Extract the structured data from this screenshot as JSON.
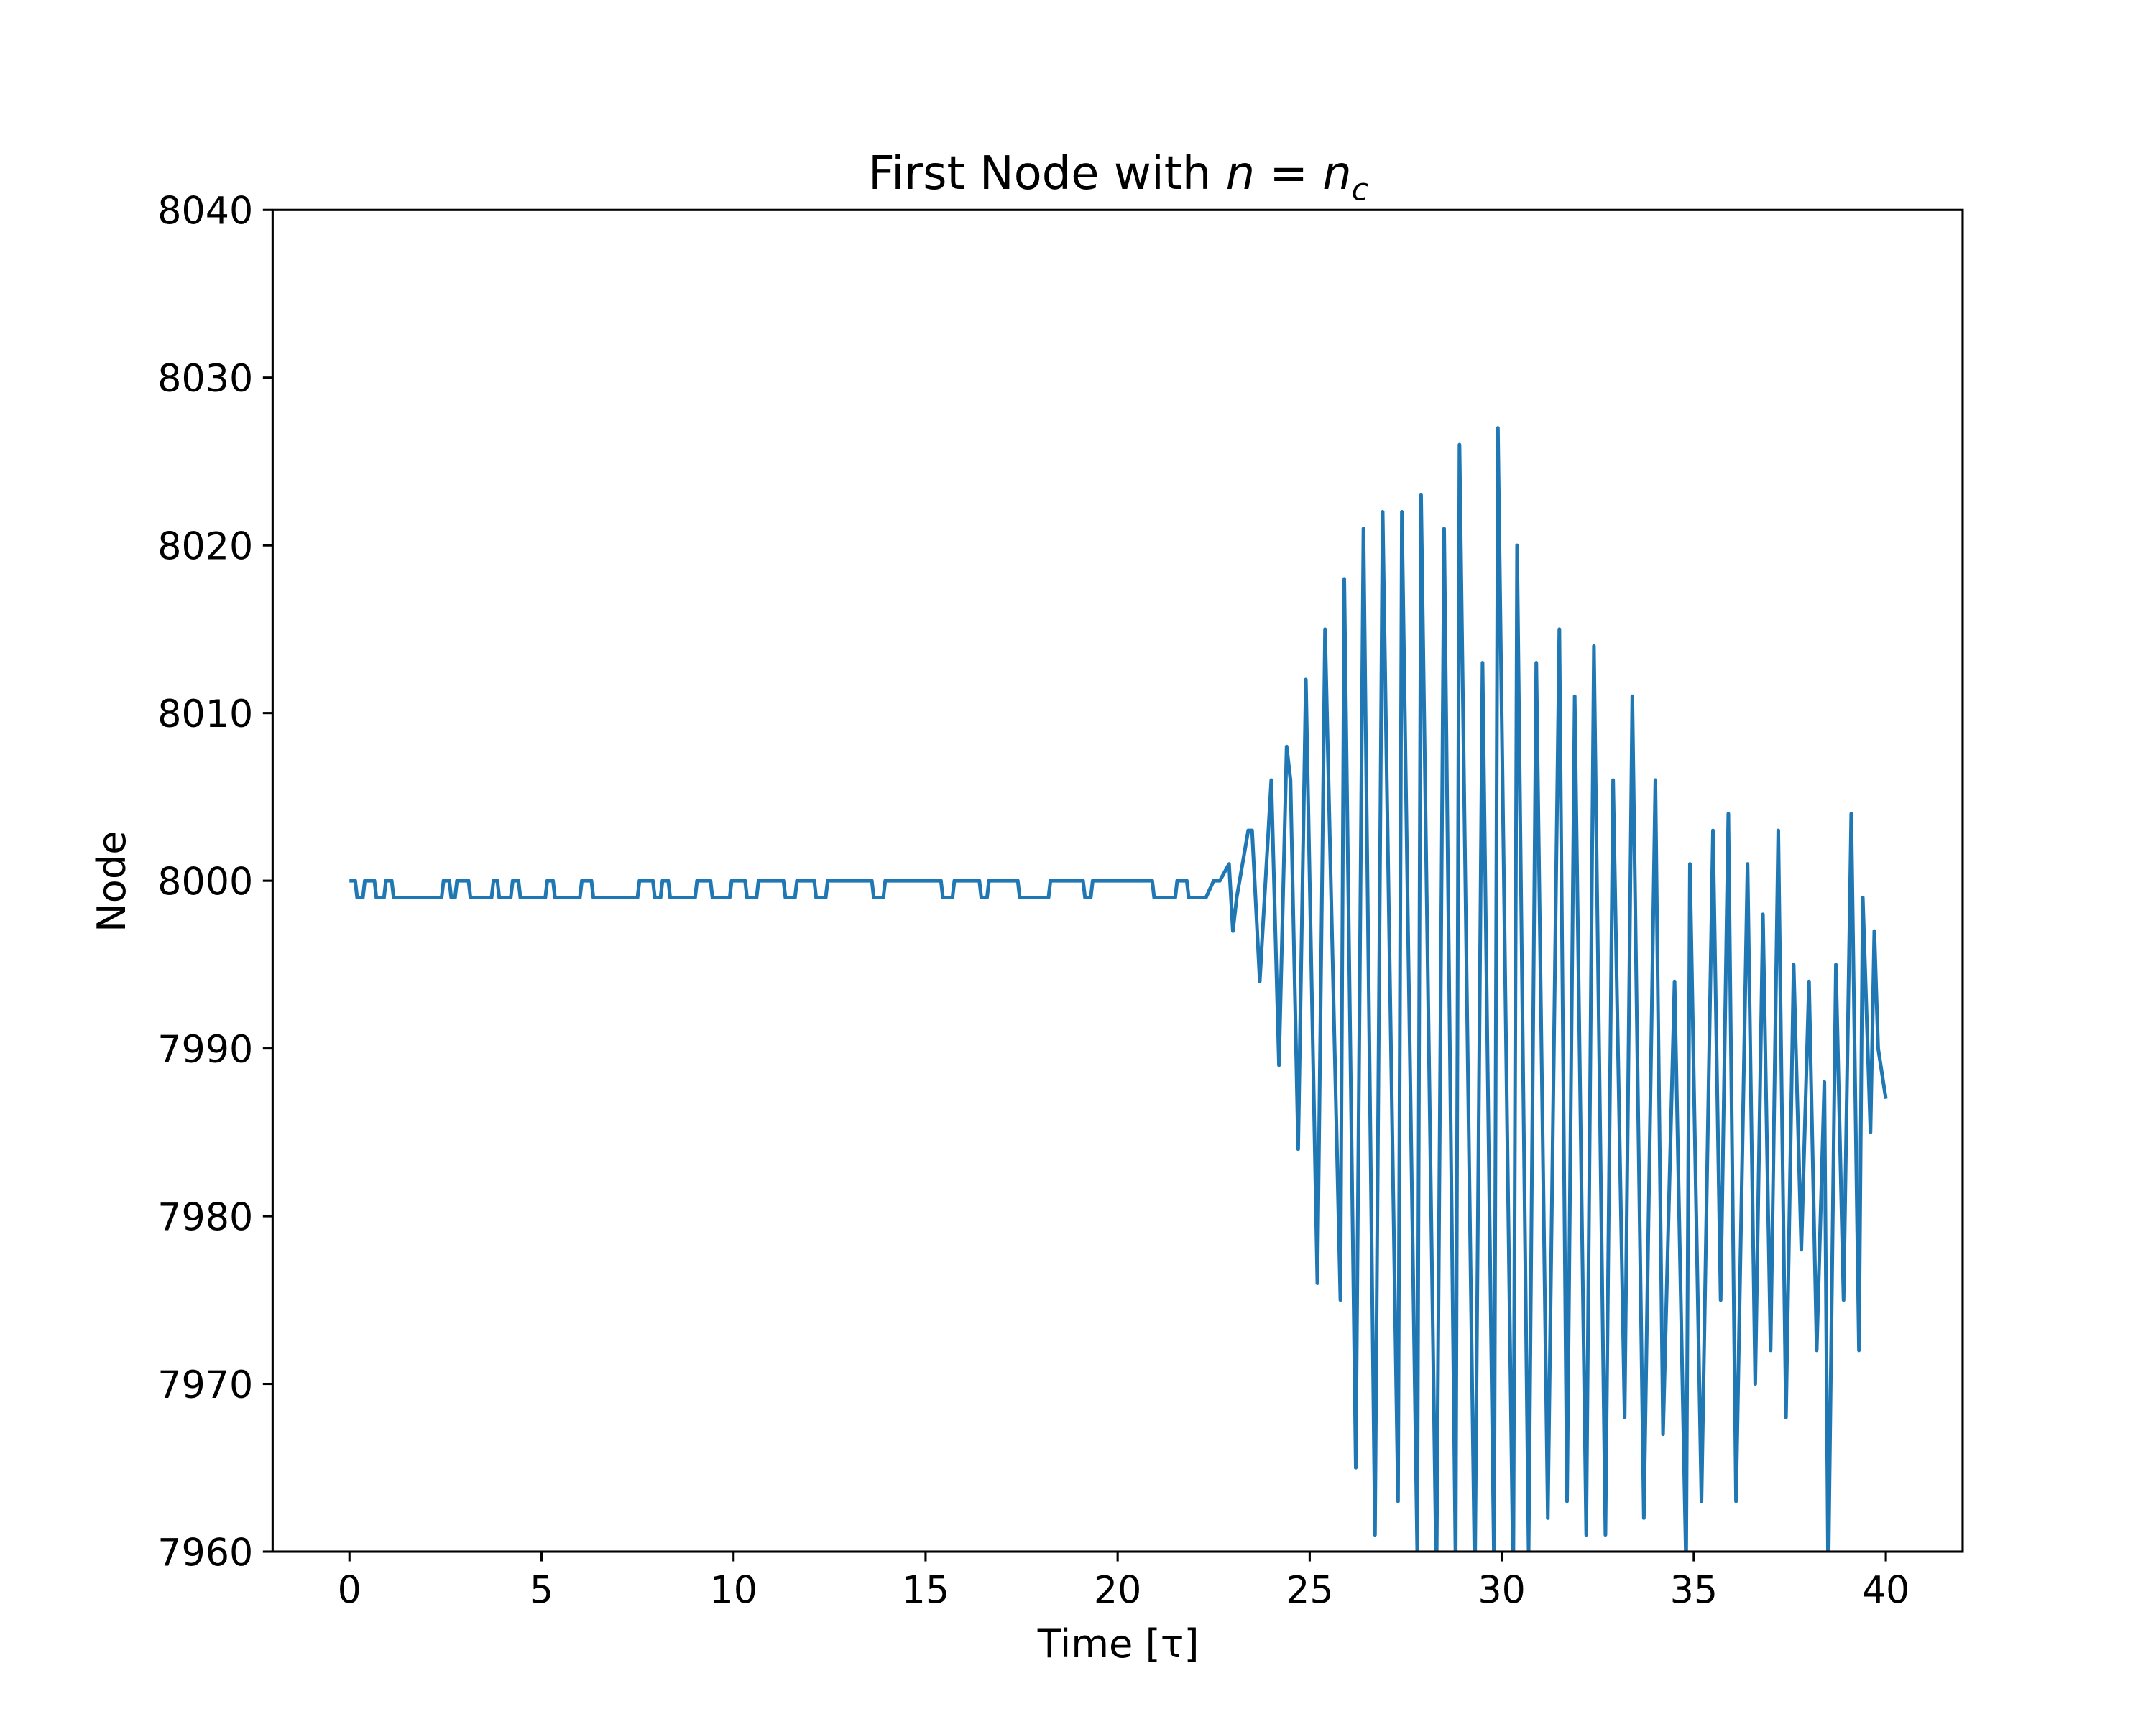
{
  "chart_data": {
    "type": "line",
    "title": [
      "First Node with ",
      "n",
      " = ",
      "n",
      "c"
    ],
    "xlabel": "Time [τ]",
    "ylabel": "Node",
    "xlim": [
      -2,
      42
    ],
    "ylim": [
      7960,
      8040
    ],
    "xticks": [
      0,
      5,
      10,
      15,
      20,
      25,
      30,
      35,
      40
    ],
    "yticks": [
      7960,
      7970,
      7980,
      7990,
      8000,
      8010,
      8020,
      8030,
      8040
    ],
    "series": [
      {
        "color": "#1f77b4",
        "x": [
          0,
          0.15,
          0.2,
          0.35,
          0.4,
          0.65,
          0.7,
          0.9,
          0.95,
          1.1,
          1.15,
          2.4,
          2.45,
          2.6,
          2.65,
          2.75,
          2.8,
          3.1,
          3.15,
          3.7,
          3.75,
          3.85,
          3.9,
          4.2,
          4.25,
          4.4,
          4.45,
          5.1,
          5.15,
          5.3,
          5.35,
          6.0,
          6.05,
          6.3,
          6.35,
          7.5,
          7.55,
          7.9,
          7.95,
          8.1,
          8.15,
          8.3,
          8.35,
          9.0,
          9.05,
          9.4,
          9.45,
          9.9,
          9.95,
          10.3,
          10.35,
          10.6,
          10.65,
          11.3,
          11.35,
          11.6,
          11.65,
          12.1,
          12.15,
          12.4,
          12.45,
          13.6,
          13.65,
          13.9,
          13.95,
          15.4,
          15.45,
          15.7,
          15.75,
          16.4,
          16.45,
          16.6,
          16.65,
          17.4,
          17.45,
          18.2,
          18.25,
          19.1,
          19.15,
          19.3,
          19.35,
          20.9,
          20.95,
          21.5,
          21.55,
          21.8,
          21.85,
          22.3,
          22.5,
          22.66,
          22.9,
          23.0,
          23.1,
          23.4,
          23.5,
          23.7,
          24.0,
          24.2,
          24.4,
          24.5,
          24.7,
          24.9,
          25.2,
          25.4,
          25.8,
          25.9,
          26.2,
          26.4,
          26.7,
          26.9,
          27.3,
          27.4,
          27.8,
          27.9,
          28.3,
          28.5,
          28.8,
          28.9,
          29.3,
          29.5,
          29.8,
          29.9,
          30.3,
          30.4,
          30.7,
          30.9,
          31.2,
          31.5,
          31.7,
          31.9,
          32.2,
          32.4,
          32.7,
          32.9,
          33.2,
          33.4,
          33.7,
          34.0,
          34.2,
          34.5,
          34.8,
          34.9,
          35.2,
          35.5,
          35.7,
          35.9,
          36.1,
          36.4,
          36.6,
          36.8,
          37.0,
          37.2,
          37.4,
          37.6,
          37.8,
          38.0,
          38.2,
          38.4,
          38.5,
          38.7,
          38.9,
          39.1,
          39.3,
          39.4,
          39.6,
          39.7,
          39.8,
          40.0
        ],
        "values": [
          8000,
          8000,
          7999,
          7999,
          8000,
          8000,
          7999,
          7999,
          8000,
          8000,
          7999,
          7999,
          8000,
          8000,
          7999,
          7999,
          8000,
          8000,
          7999,
          7999,
          8000,
          8000,
          7999,
          7999,
          8000,
          8000,
          7999,
          7999,
          8000,
          8000,
          7999,
          7999,
          8000,
          8000,
          7999,
          7999,
          8000,
          8000,
          7999,
          7999,
          8000,
          8000,
          7999,
          7999,
          8000,
          8000,
          7999,
          7999,
          8000,
          8000,
          7999,
          7999,
          8000,
          8000,
          7999,
          7999,
          8000,
          8000,
          7999,
          7999,
          8000,
          8000,
          7999,
          7999,
          8000,
          8000,
          7999,
          7999,
          8000,
          8000,
          7999,
          7999,
          8000,
          8000,
          7999,
          7999,
          8000,
          8000,
          7999,
          7999,
          8000,
          8000,
          7999,
          7999,
          8000,
          8000,
          7999,
          7999,
          8000,
          8000,
          8001,
          7997,
          7999,
          8003,
          8003,
          7994,
          8006,
          7989,
          8008,
          8006,
          7984,
          8012,
          7976,
          8015,
          7975,
          8018,
          7965,
          8021,
          7961,
          8022,
          7963,
          8022,
          7960,
          8023,
          7958,
          8021,
          7959,
          8026,
          7958,
          8013,
          7959,
          8027,
          7958,
          8020,
          7960,
          8013,
          7962,
          8015,
          7963,
          8011,
          7961,
          8014,
          7961,
          8006,
          7968,
          8011,
          7962,
          8006,
          7967,
          7994,
          7959,
          8001,
          7963,
          8003,
          7975,
          8004,
          7963,
          8001,
          7970,
          7998,
          7972,
          8003,
          7968,
          7995,
          7978,
          7994,
          7972,
          7988,
          7958,
          7995,
          7975,
          8004,
          7972,
          7999,
          7985,
          7997,
          7990,
          7987
        ]
      }
    ]
  }
}
